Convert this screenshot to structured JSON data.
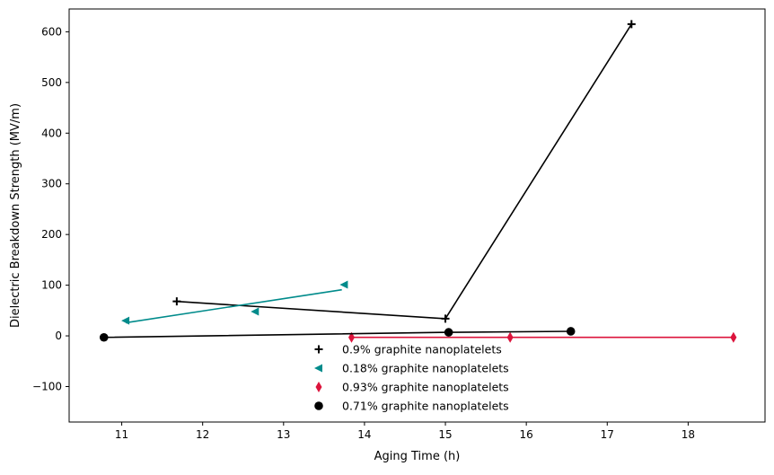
{
  "chart_data": {
    "type": "scatter",
    "title": "",
    "xlabel": "Aging Time (h)",
    "ylabel": "Dielectric Breakdown Strength (MV/m)",
    "xlim": [
      10.35,
      18.95
    ],
    "ylim": [
      -170,
      645
    ],
    "xticks": [
      11,
      12,
      13,
      14,
      15,
      16,
      17,
      18
    ],
    "yticks": [
      -100,
      0,
      100,
      200,
      300,
      400,
      500,
      600
    ],
    "ytick_labels": [
      "−100",
      "0",
      "100",
      "200",
      "300",
      "400",
      "500",
      "600"
    ],
    "grid": false,
    "legend_position": "lower-center",
    "series": [
      {
        "name": "0.9% graphite nanoplatelets",
        "marker": "plus",
        "color": "#000000",
        "points": [
          [
            11.68,
            68
          ],
          [
            15.0,
            34
          ],
          [
            17.3,
            615
          ]
        ],
        "line": [
          [
            11.68,
            68
          ],
          [
            15.0,
            34
          ],
          [
            17.3,
            615
          ]
        ]
      },
      {
        "name": "0.18% graphite nanoplatelets",
        "marker": "triangle-left",
        "color": "#008b8b",
        "points": [
          [
            11.05,
            30
          ],
          [
            12.65,
            48
          ],
          [
            13.75,
            101
          ]
        ],
        "line": [
          [
            11.05,
            26
          ],
          [
            13.72,
            91
          ]
        ]
      },
      {
        "name": "0.93% graphite nanoplatelets",
        "marker": "thin-diamond",
        "color": "#dc143c",
        "points": [
          [
            13.84,
            -3
          ],
          [
            15.8,
            -3
          ],
          [
            18.56,
            -3
          ]
        ],
        "line": [
          [
            13.84,
            -3
          ],
          [
            18.56,
            -3
          ]
        ]
      },
      {
        "name": "0.71% graphite nanoplatelets",
        "marker": "circle",
        "color": "#000000",
        "points": [
          [
            10.78,
            -3
          ],
          [
            15.04,
            7
          ],
          [
            16.55,
            9
          ]
        ],
        "line": [
          [
            10.78,
            -3
          ],
          [
            15.04,
            7
          ],
          [
            16.55,
            9
          ]
        ]
      }
    ]
  }
}
